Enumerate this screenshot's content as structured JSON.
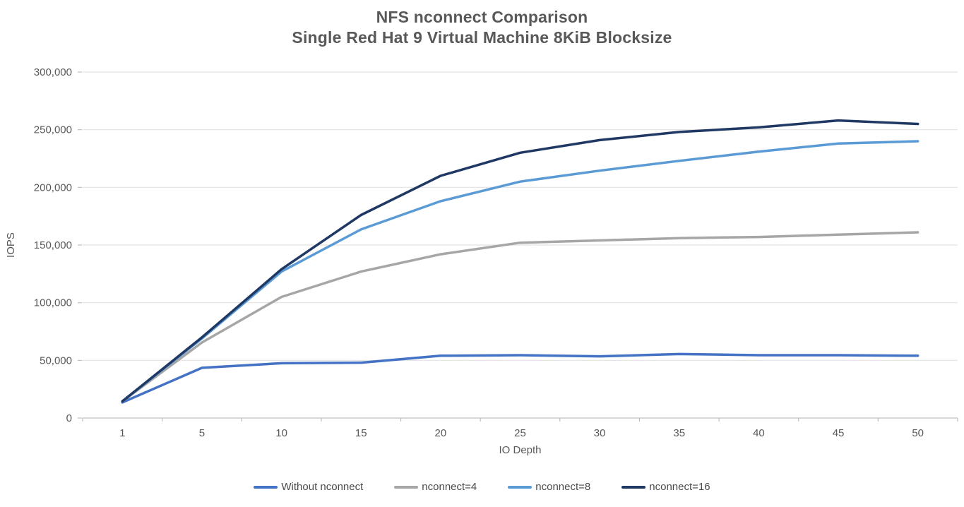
{
  "chart_data": {
    "type": "line",
    "title": "NFS nconnect Comparison",
    "subtitle": "Single Red Hat 9 Virtual Machine 8KiB Blocksize",
    "xlabel": "IO Depth",
    "ylabel": "IOPS",
    "categories": [
      "1",
      "5",
      "10",
      "15",
      "20",
      "25",
      "30",
      "35",
      "40",
      "45",
      "50"
    ],
    "series": [
      {
        "name": "Without nconnect",
        "color": "#4472C4",
        "values": [
          13500,
          43500,
          47500,
          48000,
          54000,
          54500,
          53500,
          55500,
          54500,
          54500,
          54000
        ]
      },
      {
        "name": "nconnect=4",
        "color": "#A6A6A6",
        "values": [
          14500,
          65500,
          105000,
          127000,
          142000,
          152000,
          154000,
          156000,
          157000,
          159000,
          161000
        ]
      },
      {
        "name": "nconnect=8",
        "color": "#5B9BD5",
        "values": [
          14500,
          69000,
          127000,
          163500,
          188000,
          205000,
          214500,
          223000,
          231000,
          238000,
          240000
        ]
      },
      {
        "name": "nconnect=16",
        "color": "#1F3864",
        "values": [
          14500,
          70000,
          129000,
          176000,
          210000,
          230000,
          241000,
          248000,
          252000,
          258000,
          255000
        ]
      }
    ],
    "ylim": [
      0,
      300000
    ],
    "ytick_step": 50000,
    "ytick_labels": [
      "0",
      "50,000",
      "100,000",
      "150,000",
      "200,000",
      "250,000",
      "300,000"
    ],
    "grid": true,
    "legend_position": "bottom",
    "colors": {
      "text": "#595959",
      "gridline": "#E2E2E2",
      "axis_line": "#BFBFBF",
      "background": "#FFFFFF"
    }
  }
}
